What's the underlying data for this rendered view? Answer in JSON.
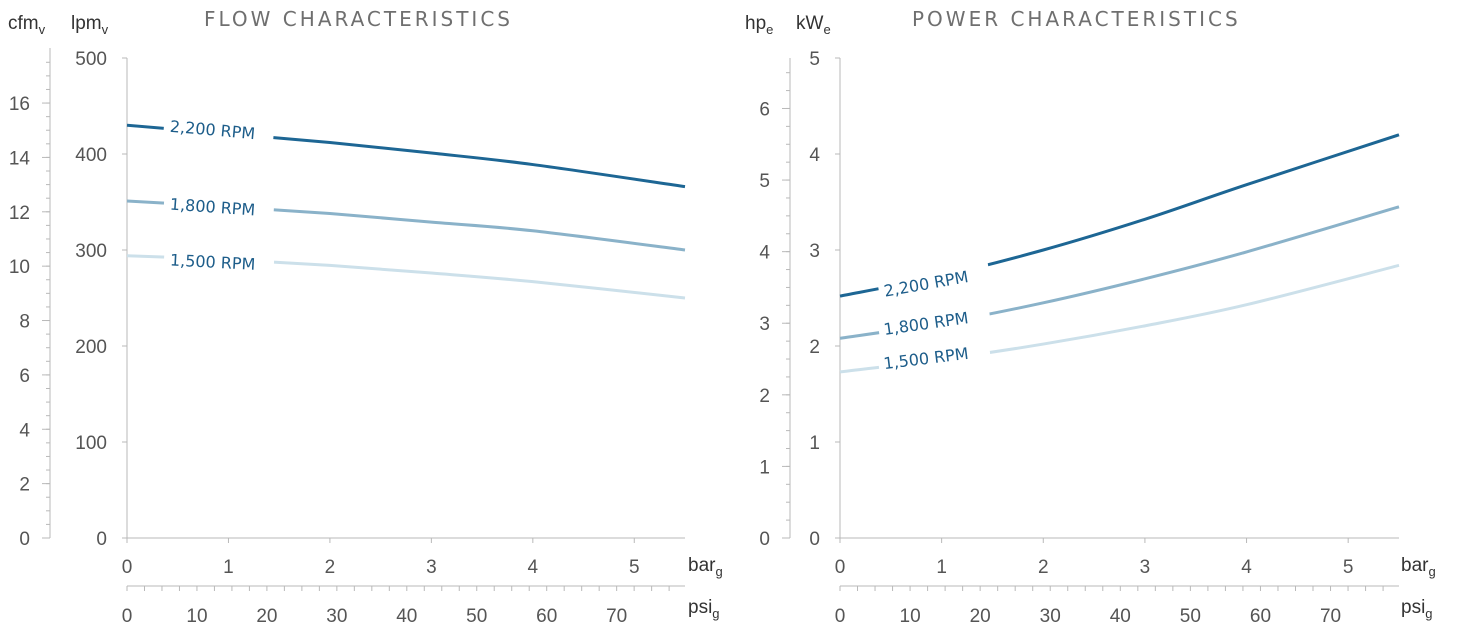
{
  "chart_data": [
    {
      "type": "line",
      "title": "FLOW CHARACTERISTICS",
      "x_label_primary": "bar",
      "x_label_primary_sub": "g",
      "x_label_secondary": "psi",
      "x_label_secondary_sub": "g",
      "y_label_outer": "cfm",
      "y_label_outer_sub": "v",
      "y_label_inner": "lpm",
      "y_label_inner_sub": "v",
      "x_bar_ticks": [
        "0",
        "1",
        "2",
        "3",
        "4",
        "5"
      ],
      "x_psi_ticks": [
        "0",
        "10",
        "20",
        "30",
        "40",
        "50",
        "60",
        "70"
      ],
      "y_lpm_ticks": [
        "0",
        "100",
        "200",
        "300",
        "400",
        "500"
      ],
      "y_cfm_ticks": [
        "0",
        "2",
        "4",
        "6",
        "8",
        "10",
        "12",
        "14",
        "16"
      ],
      "xlim_bar": [
        0,
        5.5
      ],
      "ylim_lpm": [
        0,
        500
      ],
      "ylim_cfm": [
        0,
        17.66
      ],
      "grid": false,
      "series": [
        {
          "name": "2,200 RPM",
          "color": "#1d6694",
          "x_bar": [
            0,
            1,
            2,
            3,
            4,
            5.5
          ],
          "y_lpm": [
            430,
            421,
            412,
            401,
            389,
            366
          ]
        },
        {
          "name": "1,800 RPM",
          "color": "#8ab2c9",
          "x_bar": [
            0,
            1,
            2,
            3,
            4,
            5.5
          ],
          "y_lpm": [
            351,
            345,
            338,
            329,
            320,
            300
          ]
        },
        {
          "name": "1,500 RPM",
          "color": "#cce0ea",
          "x_bar": [
            0,
            1,
            2,
            3,
            4,
            5.5
          ],
          "y_lpm": [
            294,
            290,
            284,
            276,
            267,
            250
          ]
        }
      ]
    },
    {
      "type": "line",
      "title": "POWER CHARACTERISTICS",
      "x_label_primary": "bar",
      "x_label_primary_sub": "g",
      "x_label_secondary": "psi",
      "x_label_secondary_sub": "g",
      "y_label_outer": "hp",
      "y_label_outer_sub": "e",
      "y_label_inner": "kW",
      "y_label_inner_sub": "e",
      "x_bar_ticks": [
        "0",
        "1",
        "2",
        "3",
        "4",
        "5"
      ],
      "x_psi_ticks": [
        "0",
        "10",
        "20",
        "30",
        "40",
        "50",
        "60",
        "70"
      ],
      "y_kw_ticks": [
        "0",
        "1",
        "2",
        "3",
        "4",
        "5"
      ],
      "y_hp_ticks": [
        "0",
        "1",
        "2",
        "3",
        "4",
        "5",
        "6"
      ],
      "xlim_bar": [
        0,
        5.5
      ],
      "ylim_kw": [
        0,
        5
      ],
      "ylim_hp": [
        0,
        6.705
      ],
      "grid": false,
      "series": [
        {
          "name": "2,200 RPM",
          "color": "#1d6694",
          "x_bar": [
            0,
            1,
            2,
            3,
            4,
            5.5
          ],
          "y_kw": [
            2.52,
            2.73,
            3.0,
            3.32,
            3.68,
            4.2
          ]
        },
        {
          "name": "1,800 RPM",
          "color": "#8ab2c9",
          "x_bar": [
            0,
            1,
            2,
            3,
            4,
            5.5
          ],
          "y_kw": [
            2.08,
            2.24,
            2.45,
            2.7,
            2.98,
            3.45
          ]
        },
        {
          "name": "1,500 RPM",
          "color": "#cce0ea",
          "x_bar": [
            0,
            1,
            2,
            3,
            4,
            5.5
          ],
          "y_kw": [
            1.73,
            1.86,
            2.02,
            2.21,
            2.43,
            2.84
          ]
        }
      ]
    }
  ]
}
